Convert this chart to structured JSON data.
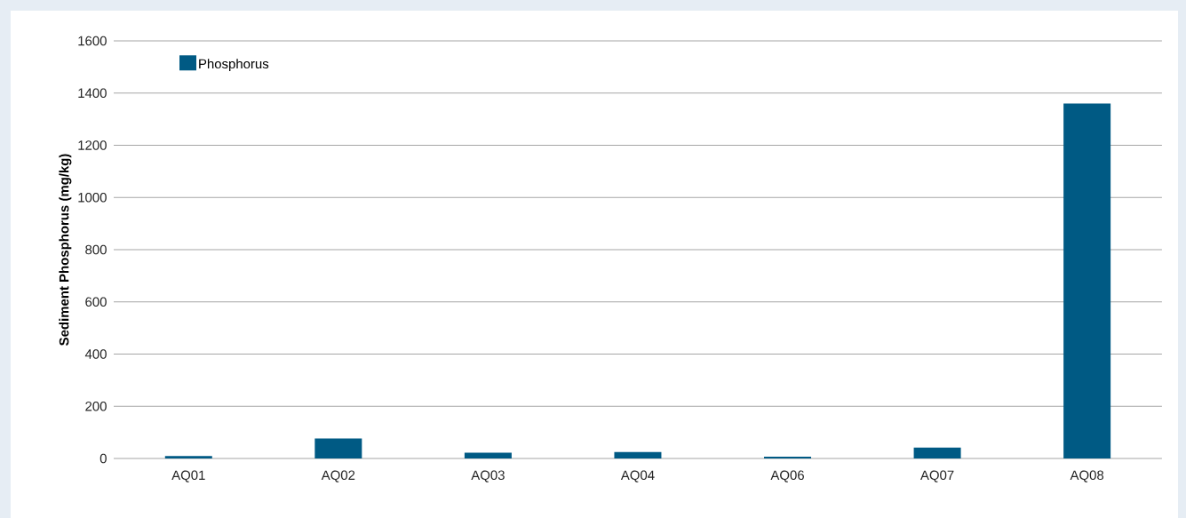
{
  "chart_data": {
    "type": "bar",
    "ylabel": "Sediment Phosphorus (mg/kg)",
    "categories": [
      "AQ01",
      "AQ02",
      "AQ03",
      "AQ04",
      "AQ06",
      "AQ07",
      "AQ08"
    ],
    "series": [
      {
        "name": "Phosphorus",
        "color": "#005a84",
        "values": [
          9,
          77,
          22,
          25,
          7,
          42,
          1360
        ]
      }
    ],
    "ylim": [
      0,
      1600
    ],
    "yticks": [
      0,
      200,
      400,
      600,
      800,
      1000,
      1200,
      1400,
      1600
    ],
    "grid": "y",
    "legend": "top left"
  }
}
